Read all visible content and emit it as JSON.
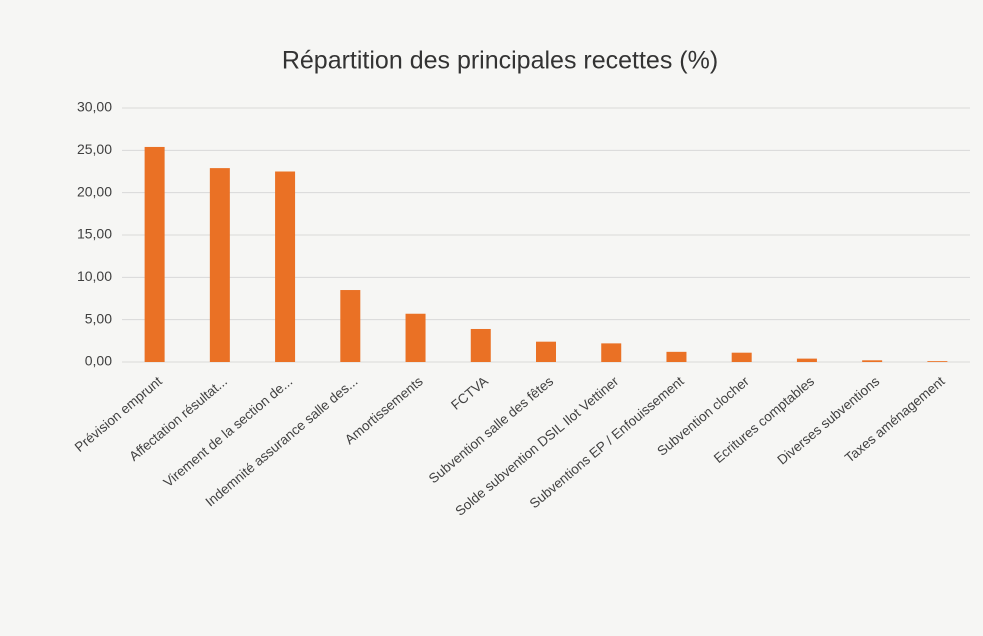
{
  "chart_data": {
    "type": "bar",
    "title": "Répartition des principales recettes (%)",
    "categories": [
      "Prévision emprunt",
      "Affectation résultat...",
      "Virement de la section de...",
      "Indemnité assurance salle des...",
      "Amortissements",
      "FCTVA",
      "Subvention salle des fêtes",
      "Solde subvention DSIL Ilot Vettiner",
      "Subventions EP / Enfouissement",
      "Subvention clocher",
      "Ecritures comptables",
      "Diverses subventions",
      "Taxes aménagement"
    ],
    "values": [
      25.4,
      22.9,
      22.5,
      8.5,
      5.7,
      3.9,
      2.4,
      2.2,
      1.2,
      1.1,
      0.4,
      0.2,
      0.1
    ],
    "color": "#ea7125",
    "ylim": [
      0,
      30
    ],
    "yticks": [
      {
        "value": 0,
        "label": "0,00"
      },
      {
        "value": 5,
        "label": "5,00"
      },
      {
        "value": 10,
        "label": "10,00"
      },
      {
        "value": 15,
        "label": "15,00"
      },
      {
        "value": 20,
        "label": "20,00"
      },
      {
        "value": 25,
        "label": "25,00"
      },
      {
        "value": 30,
        "label": "30,00"
      }
    ],
    "grid": true
  }
}
